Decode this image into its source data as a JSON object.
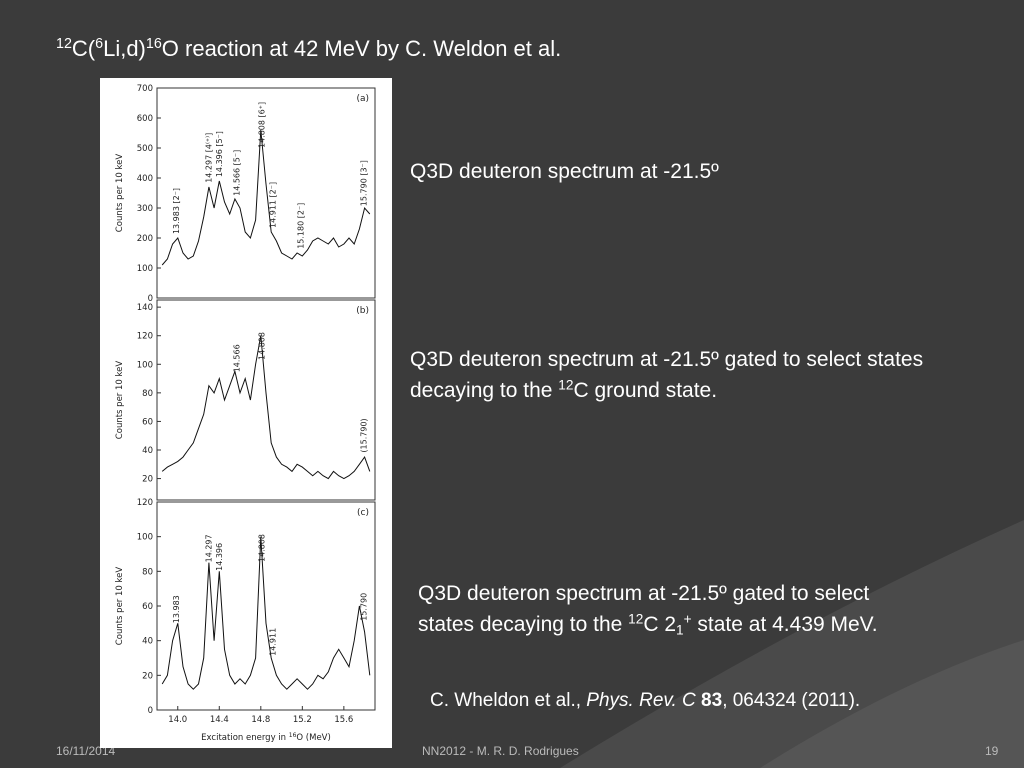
{
  "title": [
    "12",
    "C(",
    "6",
    "Li,d)",
    "16",
    "O  reaction at 42 MeV by C. Weldon et al."
  ],
  "captions": [
    [
      "Q3D deuteron spectrum at -21.5º"
    ],
    [
      "Q3D deuteron spectrum at -21.5º gated  to select states decaying to the ",
      "12",
      "C ground state."
    ],
    [
      "Q3D deuteron spectrum at -21.5º gated  to select states decaying to the ",
      "12",
      "C 2",
      "1",
      "+",
      " state at 4.439 MeV."
    ]
  ],
  "citation": [
    "C. Wheldon et al., ",
    "Phys. Rev. C",
    " 83",
    ", 064324 (2011)."
  ],
  "footer": {
    "date": "16/11/2014",
    "center": "NN2012 - M. R. D. Rodrigues",
    "page": "19"
  },
  "chart_data": [
    {
      "type": "line",
      "title": "(a)",
      "y_label": "Counts per 10 keV",
      "color": "#111111",
      "x": [
        13.85,
        13.9,
        13.95,
        14,
        14.05,
        14.1,
        14.15,
        14.2,
        14.25,
        14.3,
        14.35,
        14.4,
        14.45,
        14.5,
        14.55,
        14.6,
        14.65,
        14.7,
        14.75,
        14.8,
        14.85,
        14.9,
        14.95,
        15,
        15.05,
        15.1,
        15.15,
        15.2,
        15.25,
        15.3,
        15.35,
        15.4,
        15.45,
        15.5,
        15.55,
        15.6,
        15.65,
        15.7,
        15.75,
        15.8,
        15.85
      ],
      "values": [
        110,
        130,
        180,
        200,
        150,
        130,
        140,
        190,
        270,
        370,
        300,
        390,
        320,
        280,
        330,
        300,
        220,
        200,
        260,
        560,
        380,
        220,
        190,
        150,
        140,
        130,
        150,
        140,
        160,
        190,
        200,
        190,
        180,
        200,
        170,
        180,
        200,
        180,
        230,
        300,
        280
      ],
      "xlim": [
        13.8,
        15.9
      ],
      "ylim": [
        0,
        700
      ],
      "yticks": [
        0,
        100,
        200,
        300,
        400,
        500,
        600,
        700
      ],
      "annotations": [
        "13.983 [2⁻]",
        "14.297 [4⁽⁺⁾]",
        "14.396 [5⁻]",
        "14.566 [5⁻]",
        "14.808 [6⁺]",
        "14.911 [2⁻]",
        "15.180 [2⁻]",
        "15.790 [3⁻]"
      ]
    },
    {
      "type": "line",
      "title": "(b)",
      "y_label": "Counts per 10 keV",
      "color": "#111111",
      "x": [
        13.85,
        13.9,
        13.95,
        14,
        14.05,
        14.1,
        14.15,
        14.2,
        14.25,
        14.3,
        14.35,
        14.4,
        14.45,
        14.5,
        14.55,
        14.6,
        14.65,
        14.7,
        14.75,
        14.8,
        14.85,
        14.9,
        14.95,
        15,
        15.05,
        15.1,
        15.15,
        15.2,
        15.25,
        15.3,
        15.35,
        15.4,
        15.45,
        15.5,
        15.55,
        15.6,
        15.65,
        15.7,
        15.75,
        15.8,
        15.85
      ],
      "values": [
        25,
        28,
        30,
        32,
        35,
        40,
        45,
        55,
        65,
        85,
        80,
        90,
        75,
        85,
        95,
        80,
        90,
        75,
        100,
        120,
        80,
        45,
        35,
        30,
        28,
        25,
        30,
        28,
        25,
        22,
        25,
        22,
        20,
        25,
        22,
        20,
        22,
        25,
        30,
        35,
        25
      ],
      "xlim": [
        13.8,
        15.9
      ],
      "ylim": [
        5,
        145
      ],
      "yticks": [
        20,
        40,
        60,
        80,
        100,
        120,
        140
      ],
      "annotations": [
        "14.566",
        "14.808",
        "(15.790)"
      ]
    },
    {
      "type": "line",
      "title": "(c)",
      "y_label": "Counts per 10 keV",
      "color": "#111111",
      "x_label": [
        "Excitation energy in ",
        "16",
        "O (MeV)"
      ],
      "x": [
        13.85,
        13.9,
        13.95,
        14,
        14.05,
        14.1,
        14.15,
        14.2,
        14.25,
        14.3,
        14.35,
        14.4,
        14.45,
        14.5,
        14.55,
        14.6,
        14.65,
        14.7,
        14.75,
        14.8,
        14.85,
        14.9,
        14.95,
        15,
        15.05,
        15.1,
        15.15,
        15.2,
        15.25,
        15.3,
        15.35,
        15.4,
        15.45,
        15.5,
        15.55,
        15.6,
        15.65,
        15.7,
        15.75,
        15.8,
        15.85
      ],
      "values": [
        15,
        20,
        40,
        50,
        25,
        15,
        12,
        15,
        30,
        85,
        40,
        80,
        35,
        20,
        15,
        18,
        15,
        20,
        30,
        100,
        50,
        30,
        20,
        15,
        12,
        15,
        18,
        15,
        12,
        15,
        20,
        18,
        22,
        30,
        35,
        30,
        25,
        40,
        60,
        45,
        20
      ],
      "xlim": [
        13.8,
        15.9
      ],
      "ylim": [
        0,
        120
      ],
      "yticks": [
        0,
        20,
        40,
        60,
        80,
        100,
        120
      ],
      "xticks": [
        {
          "value": 14,
          "label": "14.0"
        },
        14.4,
        14.8,
        15.2,
        15.6
      ],
      "annotations": [
        "13.983",
        "14.297",
        "14.396",
        "14.808",
        "14.911",
        "15.790"
      ]
    }
  ]
}
